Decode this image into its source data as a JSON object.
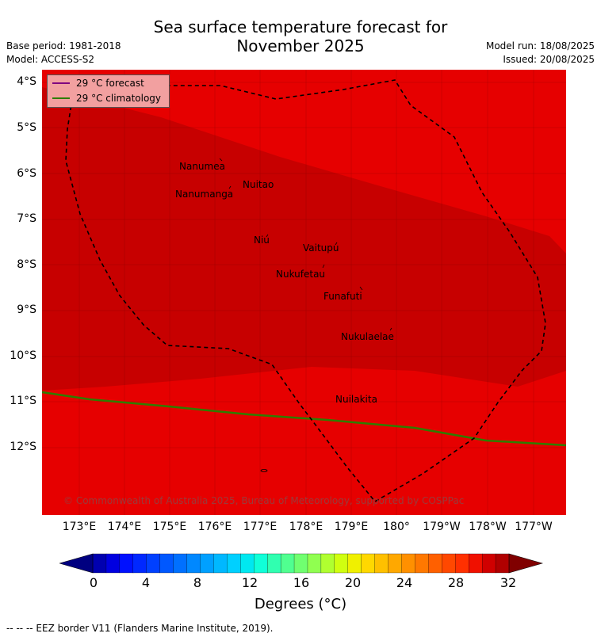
{
  "title_line1": "Sea surface temperature forecast for",
  "title_line2": "November 2025",
  "base_period": "Base period: 1981-2018",
  "model": "Model: ACCESS-S2",
  "model_run": "Model run: 18/08/2025",
  "issued": "Issued: 20/08/2025",
  "y_labels": [
    "4°S",
    "5°S",
    "6°S",
    "7°S",
    "8°S",
    "9°S",
    "10°S",
    "11°S",
    "12°S"
  ],
  "x_labels": [
    "173°E",
    "174°E",
    "175°E",
    "176°E",
    "177°E",
    "178°E",
    "179°E",
    "180°",
    "179°W",
    "178°W",
    "177°W"
  ],
  "places": [
    {
      "name": "Nanumea"
    },
    {
      "name": "Nuitao"
    },
    {
      "name": "Nanumanga"
    },
    {
      "name": "Niu"
    },
    {
      "name": "Vaitupu"
    },
    {
      "name": "Nukufetau"
    },
    {
      "name": "Funafuti"
    },
    {
      "name": "Nukulaelae"
    },
    {
      "name": "Nuilakita"
    }
  ],
  "legend": {
    "forecast_label": "29 °C  forecast",
    "climatology_label": "29 °C  climatology",
    "forecast_color": "#800080",
    "climatology_color": "#2e7d00"
  },
  "copyright": "© Commonwealth of Australia 2025, Bureau of Meteorology, supported by COSPPac",
  "colorbar": {
    "ticks": [
      "0",
      "4",
      "8",
      "12",
      "16",
      "20",
      "24",
      "28",
      "32"
    ],
    "title": "Degrees (°C)",
    "colors": [
      "#000080",
      "#0000b0",
      "#0000e0",
      "#0010ff",
      "#0028ff",
      "#0040ff",
      "#0058ff",
      "#0070ff",
      "#0088ff",
      "#00a0ff",
      "#00b8ff",
      "#00d0ff",
      "#00e8f0",
      "#10ffd8",
      "#30ffb0",
      "#50ff90",
      "#70ff70",
      "#90ff50",
      "#b0ff30",
      "#d0ff10",
      "#f0f000",
      "#ffd800",
      "#ffc000",
      "#ffa800",
      "#ff9000",
      "#ff7800",
      "#ff6000",
      "#ff4800",
      "#ff3000",
      "#f01000",
      "#d00000",
      "#b00000",
      "#800000"
    ]
  },
  "footnote": "--  --  -- EEZ border V11 (Flanders Marine Institute, 2019)."
}
